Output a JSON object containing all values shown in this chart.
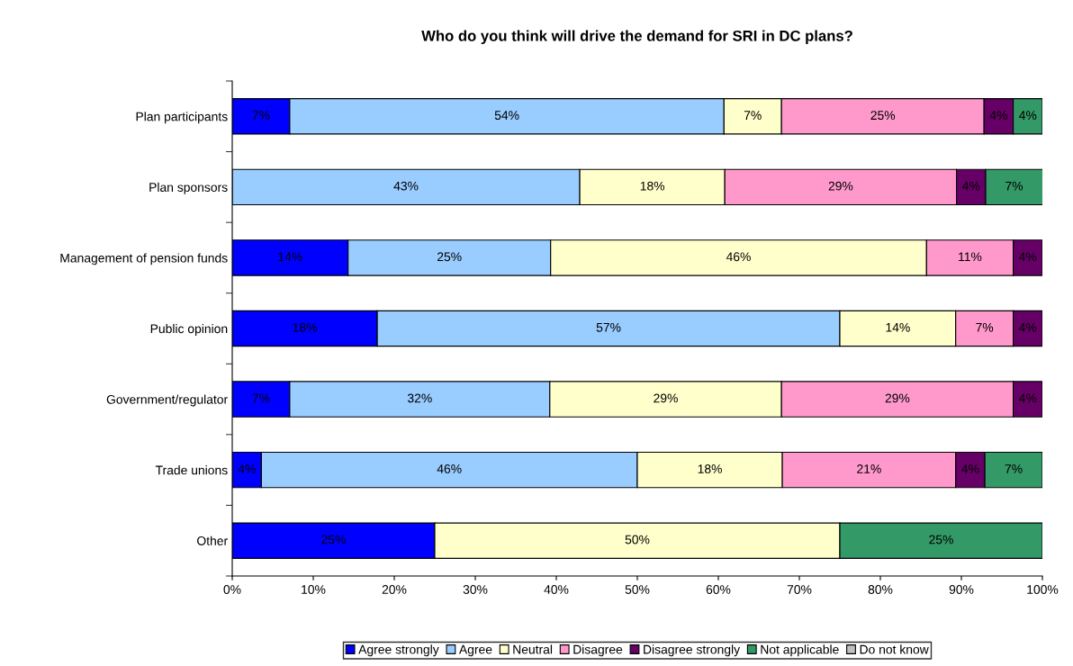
{
  "chart_data": {
    "type": "bar",
    "orientation": "horizontal",
    "stacked": true,
    "title": "Who do you think will drive the demand for SRI in DC plans?",
    "categories": [
      "Plan participants",
      "Plan sponsors",
      "Management of pension funds",
      "Public opinion",
      "Government/regulator",
      "Trade unions",
      "Other"
    ],
    "series": [
      {
        "name": "Agree strongly",
        "color": "#0000ff",
        "values": [
          7.1,
          null,
          14.3,
          17.9,
          7.1,
          3.6,
          25
        ],
        "value_labels": [
          "7%",
          null,
          "14%",
          "18%",
          "7%",
          "4%",
          "25%"
        ]
      },
      {
        "name": "Agree",
        "color": "#99ccff",
        "values": [
          53.6,
          42.9,
          25,
          57.1,
          32.1,
          46.4,
          null
        ],
        "value_labels": [
          "54%",
          "43%",
          "25%",
          "57%",
          "32%",
          "46%",
          null
        ]
      },
      {
        "name": "Neutral",
        "color": "#ffffcc",
        "values": [
          7.1,
          17.9,
          46.4,
          14.3,
          28.6,
          17.9,
          50
        ],
        "value_labels": [
          "7%",
          "18%",
          "46%",
          "14%",
          "29%",
          "18%",
          "50%"
        ]
      },
      {
        "name": "Disagree",
        "color": "#ff99cc",
        "values": [
          25,
          28.6,
          10.7,
          7.1,
          28.6,
          21.4,
          null
        ],
        "value_labels": [
          "25%",
          "29%",
          "11%",
          "7%",
          "29%",
          "21%",
          null
        ]
      },
      {
        "name": "Disagree strongly",
        "color": "#660066",
        "values": [
          3.6,
          3.6,
          3.6,
          3.6,
          3.6,
          3.6,
          null
        ],
        "value_labels": [
          "4%",
          "4%",
          "4%",
          "4%",
          "4%",
          "4%",
          null
        ]
      },
      {
        "name": "Not applicable",
        "color": "#339966",
        "values": [
          3.6,
          7.1,
          null,
          null,
          null,
          7.1,
          25
        ],
        "value_labels": [
          "4%",
          "7%",
          null,
          null,
          null,
          "7%",
          "25%"
        ]
      },
      {
        "name": "Do not know",
        "color": "#c0c0c0",
        "values": [
          null,
          null,
          null,
          null,
          null,
          null,
          null
        ]
      }
    ],
    "xlim": [
      0,
      100
    ],
    "xticks": [
      {
        "value": 0,
        "label": "0%"
      },
      {
        "value": 10,
        "label": "10%"
      },
      {
        "value": 20,
        "label": "20%"
      },
      {
        "value": 30,
        "label": "30%"
      },
      {
        "value": 40,
        "label": "40%"
      },
      {
        "value": 50,
        "label": "50%"
      },
      {
        "value": 60,
        "label": "60%"
      },
      {
        "value": 70,
        "label": "70%"
      },
      {
        "value": 80,
        "label": "80%"
      },
      {
        "value": 90,
        "label": "90%"
      },
      {
        "value": 100,
        "label": "100%"
      }
    ],
    "grid": false,
    "legend": "bottom"
  }
}
